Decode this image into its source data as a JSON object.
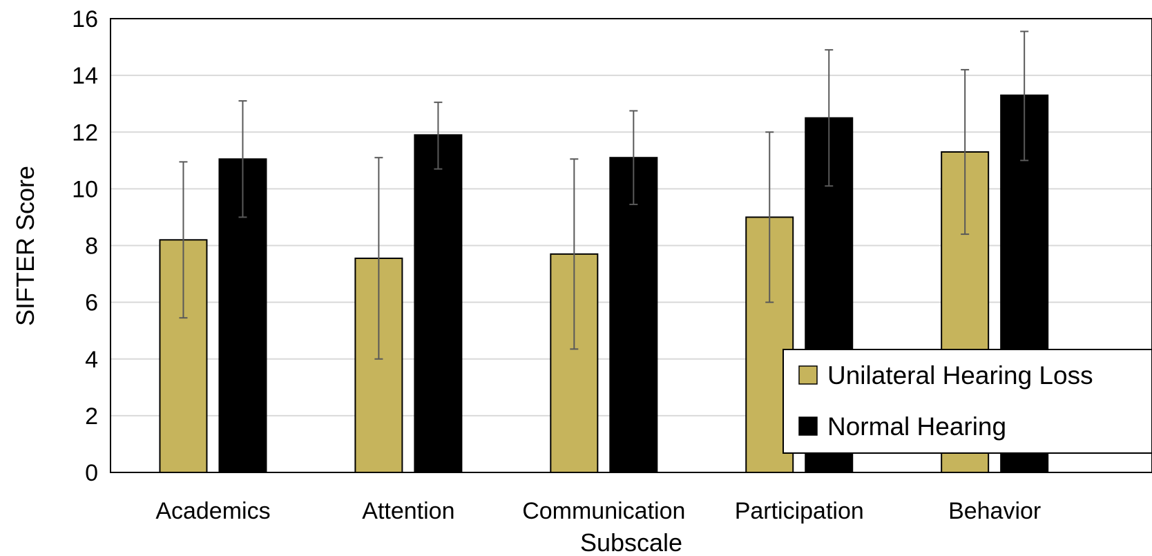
{
  "chart_data": {
    "type": "bar",
    "title": "",
    "xlabel": "Subscale",
    "ylabel": "SIFTER Score",
    "ylim": [
      0,
      16
    ],
    "yticks": [
      0,
      2,
      4,
      6,
      8,
      10,
      12,
      14,
      16
    ],
    "grid": true,
    "legend_position": "bottom-right",
    "categories": [
      "Academics",
      "Attention",
      "Communication",
      "Participation",
      "Behavior"
    ],
    "series": [
      {
        "name": "Unilateral Hearing Loss",
        "color": "#c6b45c",
        "values": [
          8.2,
          7.55,
          7.7,
          9.0,
          11.3
        ],
        "err_low": [
          5.45,
          4.0,
          4.35,
          6.0,
          8.4
        ],
        "err_high": [
          10.95,
          11.1,
          11.05,
          12.0,
          14.2
        ]
      },
      {
        "name": "Normal Hearing",
        "color": "#000000",
        "values": [
          11.05,
          11.9,
          11.1,
          12.5,
          13.3
        ],
        "err_low": [
          9.0,
          10.7,
          9.45,
          10.1,
          11.0
        ],
        "err_high": [
          13.1,
          13.05,
          12.75,
          14.9,
          15.55
        ]
      }
    ]
  }
}
